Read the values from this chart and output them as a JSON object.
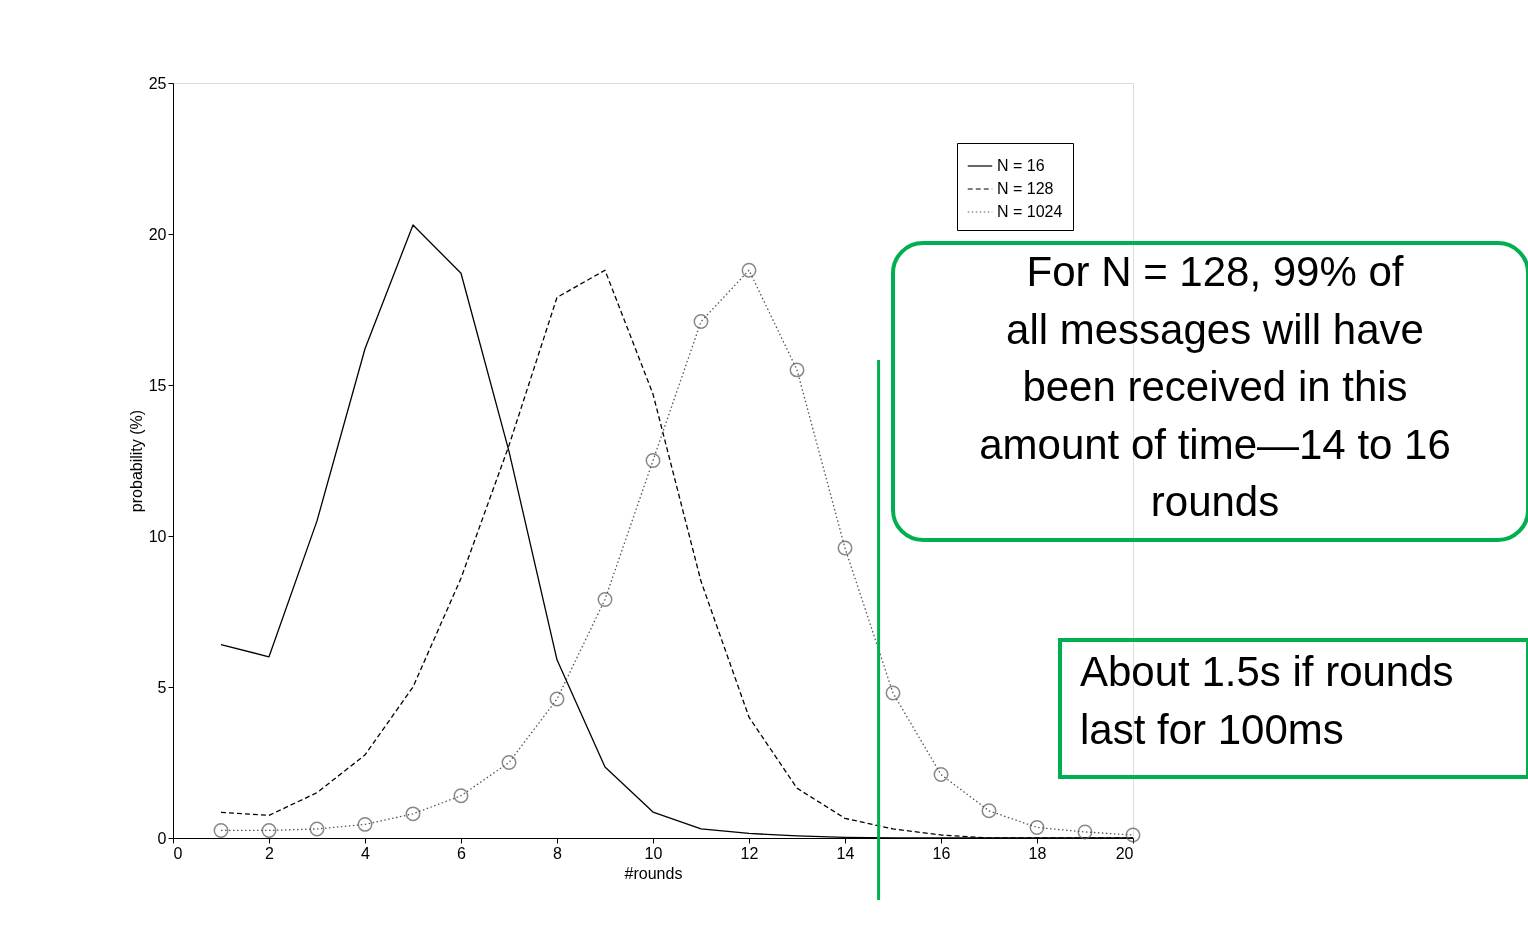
{
  "chart_data": {
    "type": "line",
    "xlabel": "#rounds",
    "ylabel": "probability (%)",
    "x": [
      1,
      2,
      3,
      4,
      5,
      6,
      7,
      8,
      9,
      10,
      11,
      12,
      13,
      14,
      15,
      16,
      17,
      18,
      19,
      20
    ],
    "series": [
      {
        "name": "N = 16",
        "color": "#000000",
        "line_style": "solid",
        "marker": "none",
        "values": [
          6.4,
          6.0,
          10.5,
          16.2,
          20.3,
          18.7,
          12.8,
          5.9,
          2.35,
          0.86,
          0.3,
          0.15,
          0.07,
          0.02,
          0,
          0,
          0,
          0,
          0,
          0
        ]
      },
      {
        "name": "N = 128",
        "color": "#000000",
        "line_style": "dashed",
        "marker": "none",
        "values": [
          0.85,
          0.75,
          1.5,
          2.75,
          5.0,
          8.6,
          13.0,
          17.9,
          18.8,
          14.7,
          8.5,
          4.0,
          1.65,
          0.65,
          0.3,
          0.1,
          0,
          0,
          0,
          0
        ]
      },
      {
        "name": "N = 1024",
        "color": "#555555",
        "line_style": "dotted",
        "marker": "circle",
        "values": [
          0.25,
          0.25,
          0.3,
          0.45,
          0.8,
          1.4,
          2.5,
          4.6,
          7.9,
          12.5,
          17.1,
          18.8,
          15.5,
          9.6,
          4.8,
          2.1,
          0.9,
          0.35,
          0.2,
          0.1
        ]
      }
    ],
    "xlim": [
      0,
      20
    ],
    "xticks": [
      0,
      2,
      4,
      6,
      8,
      10,
      12,
      14,
      16,
      18,
      20
    ],
    "ylim": [
      0,
      25
    ],
    "yticks": [
      0,
      5,
      10,
      15,
      20,
      25
    ],
    "grid": false,
    "legend": "top right",
    "ref_lines": [
      {
        "axis": "x",
        "value": 14.7,
        "color": "#00b050"
      }
    ],
    "annotations": [
      "For N = 128, 99% of\nall messages will have\nbeen received in this\namount of time—14 to 16\nrounds",
      "About 1.5s if rounds\nlast for 100ms"
    ]
  }
}
